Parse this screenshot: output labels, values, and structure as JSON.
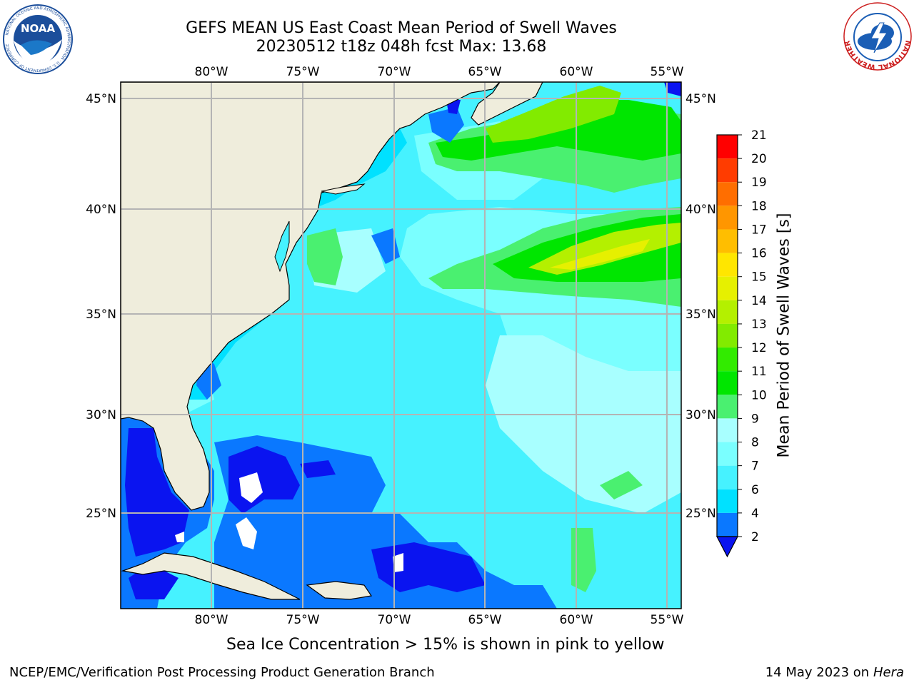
{
  "header": {
    "title_line1": "GEFS MEAN US East Coast Mean Period of Swell Waves",
    "title_line2": "20230512 t18z 048h fcst   Max: 13.68"
  },
  "logos": {
    "noaa": {
      "text": "NOAA",
      "ring_text": "NATIONAL OCEANIC AND ATMOSPHERIC ADMINISTRATION · U.S. DEPARTMENT OF COMMERCE"
    },
    "nws": {
      "ring_text": "NATIONAL WEATHER SERVICE"
    }
  },
  "map": {
    "lon_labels": [
      "80°W",
      "75°W",
      "70°W",
      "65°W",
      "60°W",
      "55°W"
    ],
    "lat_labels": [
      "45°N",
      "40°N",
      "35°N",
      "30°N",
      "25°N"
    ],
    "colors": {
      "land": "#efeddc",
      "grid": "#b4b4b4",
      "coast": "#000000"
    }
  },
  "colorbar": {
    "label": "Mean Period of Swell Waves [s]",
    "ticks": [
      "2",
      "4",
      "6",
      "7",
      "8",
      "9",
      "10",
      "11",
      "12",
      "13",
      "14",
      "15",
      "16",
      "17",
      "18",
      "19",
      "20",
      "21"
    ],
    "colors": [
      "#0a14f0",
      "#0a78ff",
      "#00e1ff",
      "#46f2ff",
      "#7affff",
      "#a8ffff",
      "#4af070",
      "#00e600",
      "#32eb00",
      "#82eb00",
      "#b4f000",
      "#e6f000",
      "#ffe600",
      "#ffbe00",
      "#ff9600",
      "#ff6e00",
      "#ff3c00",
      "#ff0000"
    ]
  },
  "footer": {
    "subtitle": "Sea Ice Concentration > 15% is shown in pink to yellow",
    "left": "NCEP/EMC/Verification Post Processing Product Generation Branch",
    "right_date": "14 May 2023 on",
    "right_host": "Hera"
  }
}
